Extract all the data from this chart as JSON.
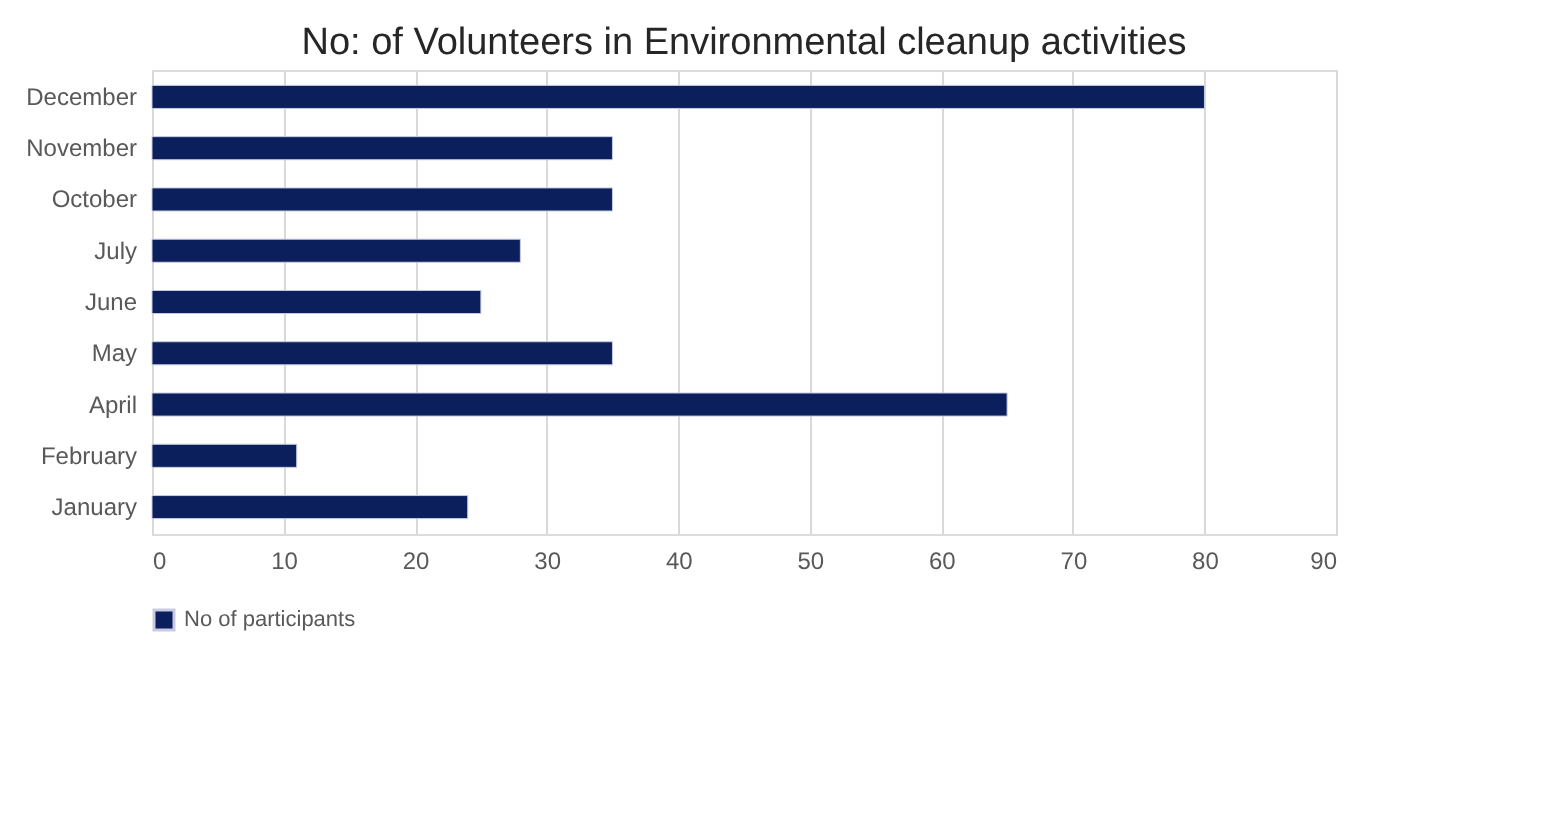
{
  "chart_data": {
    "type": "bar",
    "orientation": "horizontal",
    "title": "No: of Volunteers in Environmental cleanup activities",
    "categories": [
      "December",
      "November",
      "October",
      "July",
      "June",
      "May",
      "April",
      "February",
      "January"
    ],
    "series": [
      {
        "name": "No of participants",
        "color": "#0a1f5c",
        "values": [
          80,
          35,
          35,
          28,
          25,
          35,
          65,
          11,
          24
        ]
      }
    ],
    "xlim": [
      0,
      90
    ],
    "xticks": [
      0,
      10,
      20,
      30,
      40,
      50,
      60,
      70,
      80,
      90
    ],
    "grid": "x",
    "legend": "bottom"
  }
}
